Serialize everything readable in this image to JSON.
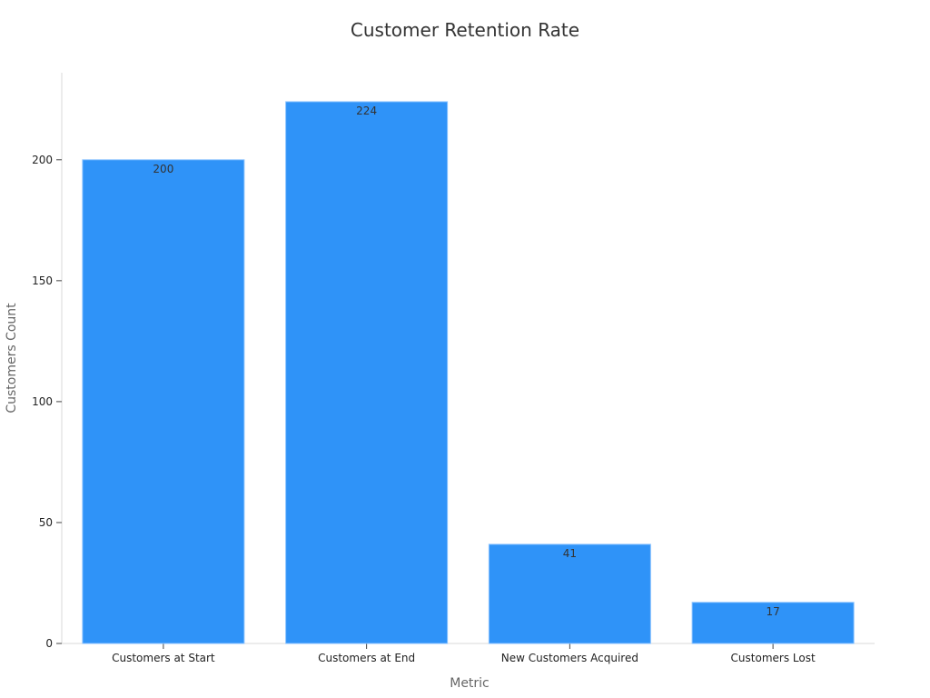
{
  "chart_data": {
    "type": "bar",
    "title": "Customer Retention Rate",
    "xlabel": "Metric",
    "ylabel": "Customers Count",
    "categories": [
      "Customers at Start",
      "Customers at End",
      "New Customers Acquired",
      "Customers Lost"
    ],
    "values": [
      200,
      224,
      41,
      17
    ],
    "data_labels": [
      "200",
      "224",
      "41",
      "17"
    ],
    "y_ticks": [
      0,
      50,
      100,
      150,
      200
    ],
    "ylim": [
      0,
      236
    ],
    "bar_color": "#2f93f8",
    "grid": false,
    "legend": "none"
  }
}
